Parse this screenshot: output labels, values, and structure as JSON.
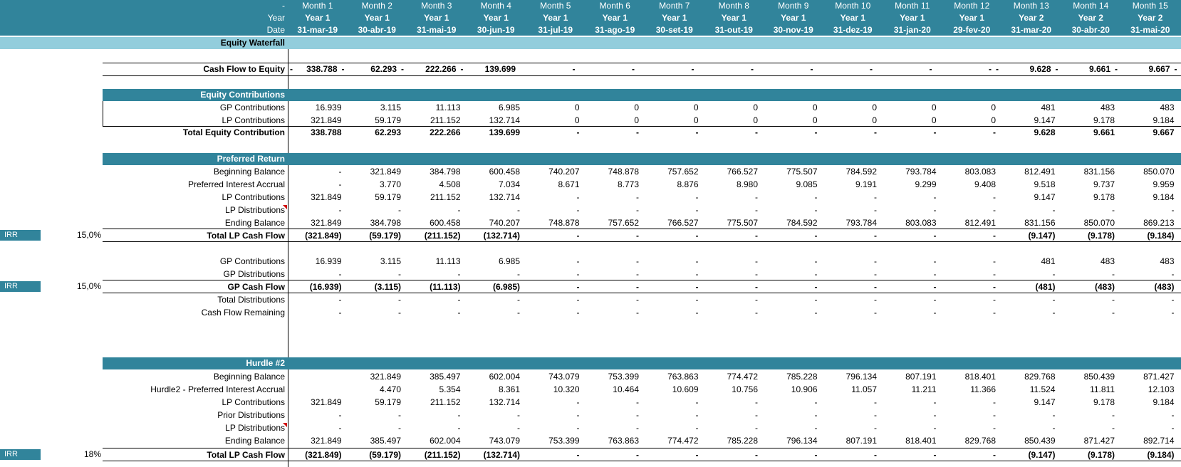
{
  "header": {
    "row0_label": "-",
    "year_label": "Year",
    "date_label": "Date",
    "months": [
      "Month 1",
      "Month 2",
      "Month 3",
      "Month 4",
      "Month 5",
      "Month 6",
      "Month 7",
      "Month 8",
      "Month 9",
      "Month 10",
      "Month 11",
      "Month 12",
      "Month 13",
      "Month 14",
      "Month 15"
    ],
    "years": [
      "Year 1",
      "Year 1",
      "Year 1",
      "Year 1",
      "Year 1",
      "Year 1",
      "Year 1",
      "Year 1",
      "Year 1",
      "Year 1",
      "Year 1",
      "Year 1",
      "Year 2",
      "Year 2",
      "Year 2"
    ],
    "dates": [
      "31-mar-19",
      "30-abr-19",
      "31-mai-19",
      "30-jun-19",
      "31-jul-19",
      "31-ago-19",
      "30-set-19",
      "31-out-19",
      "30-nov-19",
      "31-dez-19",
      "31-jan-20",
      "29-fev-20",
      "31-mar-20",
      "30-abr-20",
      "31-mai-20"
    ]
  },
  "equity_waterfall_title": "Equity Waterfall",
  "cash_flow_to_equity": {
    "label": "Cash Flow to Equity",
    "prefix": "-",
    "values": [
      "338.788",
      "62.293",
      "222.266",
      "139.699",
      "-",
      "-",
      "-",
      "-",
      "-",
      "-",
      "-",
      "-",
      "9.628",
      "9.661",
      "9.667"
    ],
    "dashes": [
      "-",
      "-",
      "-",
      "",
      "",
      "",
      "",
      "",
      "",
      "",
      "",
      "-",
      "-",
      "-",
      "-"
    ]
  },
  "equity_contributions": {
    "title": "Equity Contributions",
    "rows": [
      {
        "label": "GP Contributions",
        "values": [
          "16.939",
          "3.115",
          "11.113",
          "6.985",
          "0",
          "0",
          "0",
          "0",
          "0",
          "0",
          "0",
          "0",
          "481",
          "483",
          "483"
        ]
      },
      {
        "label": "LP Contributions",
        "values": [
          "321.849",
          "59.179",
          "211.152",
          "132.714",
          "0",
          "0",
          "0",
          "0",
          "0",
          "0",
          "0",
          "0",
          "9.147",
          "9.178",
          "9.184"
        ]
      },
      {
        "label": "Total Equity Contribution",
        "values": [
          "338.788",
          "62.293",
          "222.266",
          "139.699",
          "-",
          "-",
          "-",
          "-",
          "-",
          "-",
          "-",
          "-",
          "9.628",
          "9.661",
          "9.667"
        ]
      }
    ]
  },
  "preferred_return": {
    "title": "Preferred Return",
    "rows": [
      {
        "label": "Beginning Balance",
        "values": [
          "-",
          "321.849",
          "384.798",
          "600.458",
          "740.207",
          "748.878",
          "757.652",
          "766.527",
          "775.507",
          "784.592",
          "793.784",
          "803.083",
          "812.491",
          "831.156",
          "850.070"
        ]
      },
      {
        "label": "Preferred Interest Accrual",
        "values": [
          "-",
          "3.770",
          "4.508",
          "7.034",
          "8.671",
          "8.773",
          "8.876",
          "8.980",
          "9.085",
          "9.191",
          "9.299",
          "9.408",
          "9.518",
          "9.737",
          "9.959"
        ]
      },
      {
        "label": "LP Contributions",
        "values": [
          "321.849",
          "59.179",
          "211.152",
          "132.714",
          "-",
          "-",
          "-",
          "-",
          "-",
          "-",
          "-",
          "-",
          "9.147",
          "9.178",
          "9.184"
        ]
      },
      {
        "label": "LP Distributions",
        "values": [
          "-",
          "-",
          "-",
          "-",
          "-",
          "-",
          "-",
          "-",
          "-",
          "-",
          "-",
          "-",
          "-",
          "-",
          "-"
        ]
      },
      {
        "label": "Ending Balance",
        "values": [
          "321.849",
          "384.798",
          "600.458",
          "740.207",
          "748.878",
          "757.652",
          "766.527",
          "775.507",
          "784.592",
          "793.784",
          "803.083",
          "812.491",
          "831.156",
          "850.070",
          "869.213"
        ]
      },
      {
        "label": "Total LP Cash Flow",
        "values": [
          "(321.849)",
          "(59.179)",
          "(211.152)",
          "(132.714)",
          "-",
          "-",
          "-",
          "-",
          "-",
          "-",
          "-",
          "-",
          "(9.147)",
          "(9.178)",
          "(9.184)"
        ]
      }
    ],
    "irr_label": "IRR",
    "irr_value": "15,0%"
  },
  "gp_section": {
    "rows": [
      {
        "label": "GP Contributions",
        "values": [
          "16.939",
          "3.115",
          "11.113",
          "6.985",
          "-",
          "-",
          "-",
          "-",
          "-",
          "-",
          "-",
          "-",
          "481",
          "483",
          "483"
        ]
      },
      {
        "label": "GP Distributions",
        "values": [
          "-",
          "-",
          "-",
          "-",
          "-",
          "-",
          "-",
          "-",
          "-",
          "-",
          "-",
          "-",
          "-",
          "-",
          "-"
        ]
      },
      {
        "label": "GP Cash Flow",
        "values": [
          "(16.939)",
          "(3.115)",
          "(11.113)",
          "(6.985)",
          "-",
          "-",
          "-",
          "-",
          "-",
          "-",
          "-",
          "-",
          "(481)",
          "(483)",
          "(483)"
        ]
      },
      {
        "label": "Total Distributions",
        "values": [
          "-",
          "-",
          "-",
          "-",
          "-",
          "-",
          "-",
          "-",
          "-",
          "-",
          "-",
          "-",
          "-",
          "-",
          "-"
        ]
      },
      {
        "label": "Cash Flow Remaining",
        "values": [
          "-",
          "-",
          "-",
          "-",
          "-",
          "-",
          "-",
          "-",
          "-",
          "-",
          "-",
          "-",
          "-",
          "-",
          "-"
        ]
      }
    ],
    "irr_label": "IRR",
    "irr_value": "15,0%"
  },
  "hurdle2": {
    "title": "Hurdle #2",
    "rows": [
      {
        "label": "Beginning Balance",
        "values": [
          "",
          "321.849",
          "385.497",
          "602.004",
          "743.079",
          "753.399",
          "763.863",
          "774.472",
          "785.228",
          "796.134",
          "807.191",
          "818.401",
          "829.768",
          "850.439",
          "871.427"
        ]
      },
      {
        "label": "Hurdle2 - Preferred Interest Accrual",
        "values": [
          "",
          "4.470",
          "5.354",
          "8.361",
          "10.320",
          "10.464",
          "10.609",
          "10.756",
          "10.906",
          "11.057",
          "11.211",
          "11.366",
          "11.524",
          "11.811",
          "12.103"
        ]
      },
      {
        "label": "LP Contributions",
        "values": [
          "321.849",
          "59.179",
          "211.152",
          "132.714",
          "-",
          "-",
          "-",
          "-",
          "-",
          "-",
          "-",
          "-",
          "9.147",
          "9.178",
          "9.184"
        ]
      },
      {
        "label": "Prior Distributions",
        "values": [
          "-",
          "-",
          "-",
          "-",
          "-",
          "-",
          "-",
          "-",
          "-",
          "-",
          "-",
          "-",
          "-",
          "-",
          "-"
        ]
      },
      {
        "label": "LP Distributions",
        "values": [
          "-",
          "-",
          "-",
          "-",
          "-",
          "-",
          "-",
          "-",
          "-",
          "-",
          "-",
          "-",
          "-",
          "-",
          "-"
        ]
      },
      {
        "label": "Ending Balance",
        "values": [
          "321.849",
          "385.497",
          "602.004",
          "743.079",
          "753.399",
          "763.863",
          "774.472",
          "785.228",
          "796.134",
          "807.191",
          "818.401",
          "829.768",
          "850.439",
          "871.427",
          "892.714"
        ]
      },
      {
        "label": "Total LP Cash Flow",
        "values": [
          "(321.849)",
          "(59.179)",
          "(211.152)",
          "(132.714)",
          "-",
          "-",
          "-",
          "-",
          "-",
          "-",
          "-",
          "-",
          "(9.147)",
          "(9.178)",
          "(9.184)"
        ]
      }
    ],
    "irr_label": "IRR",
    "irr_value": "18%"
  }
}
